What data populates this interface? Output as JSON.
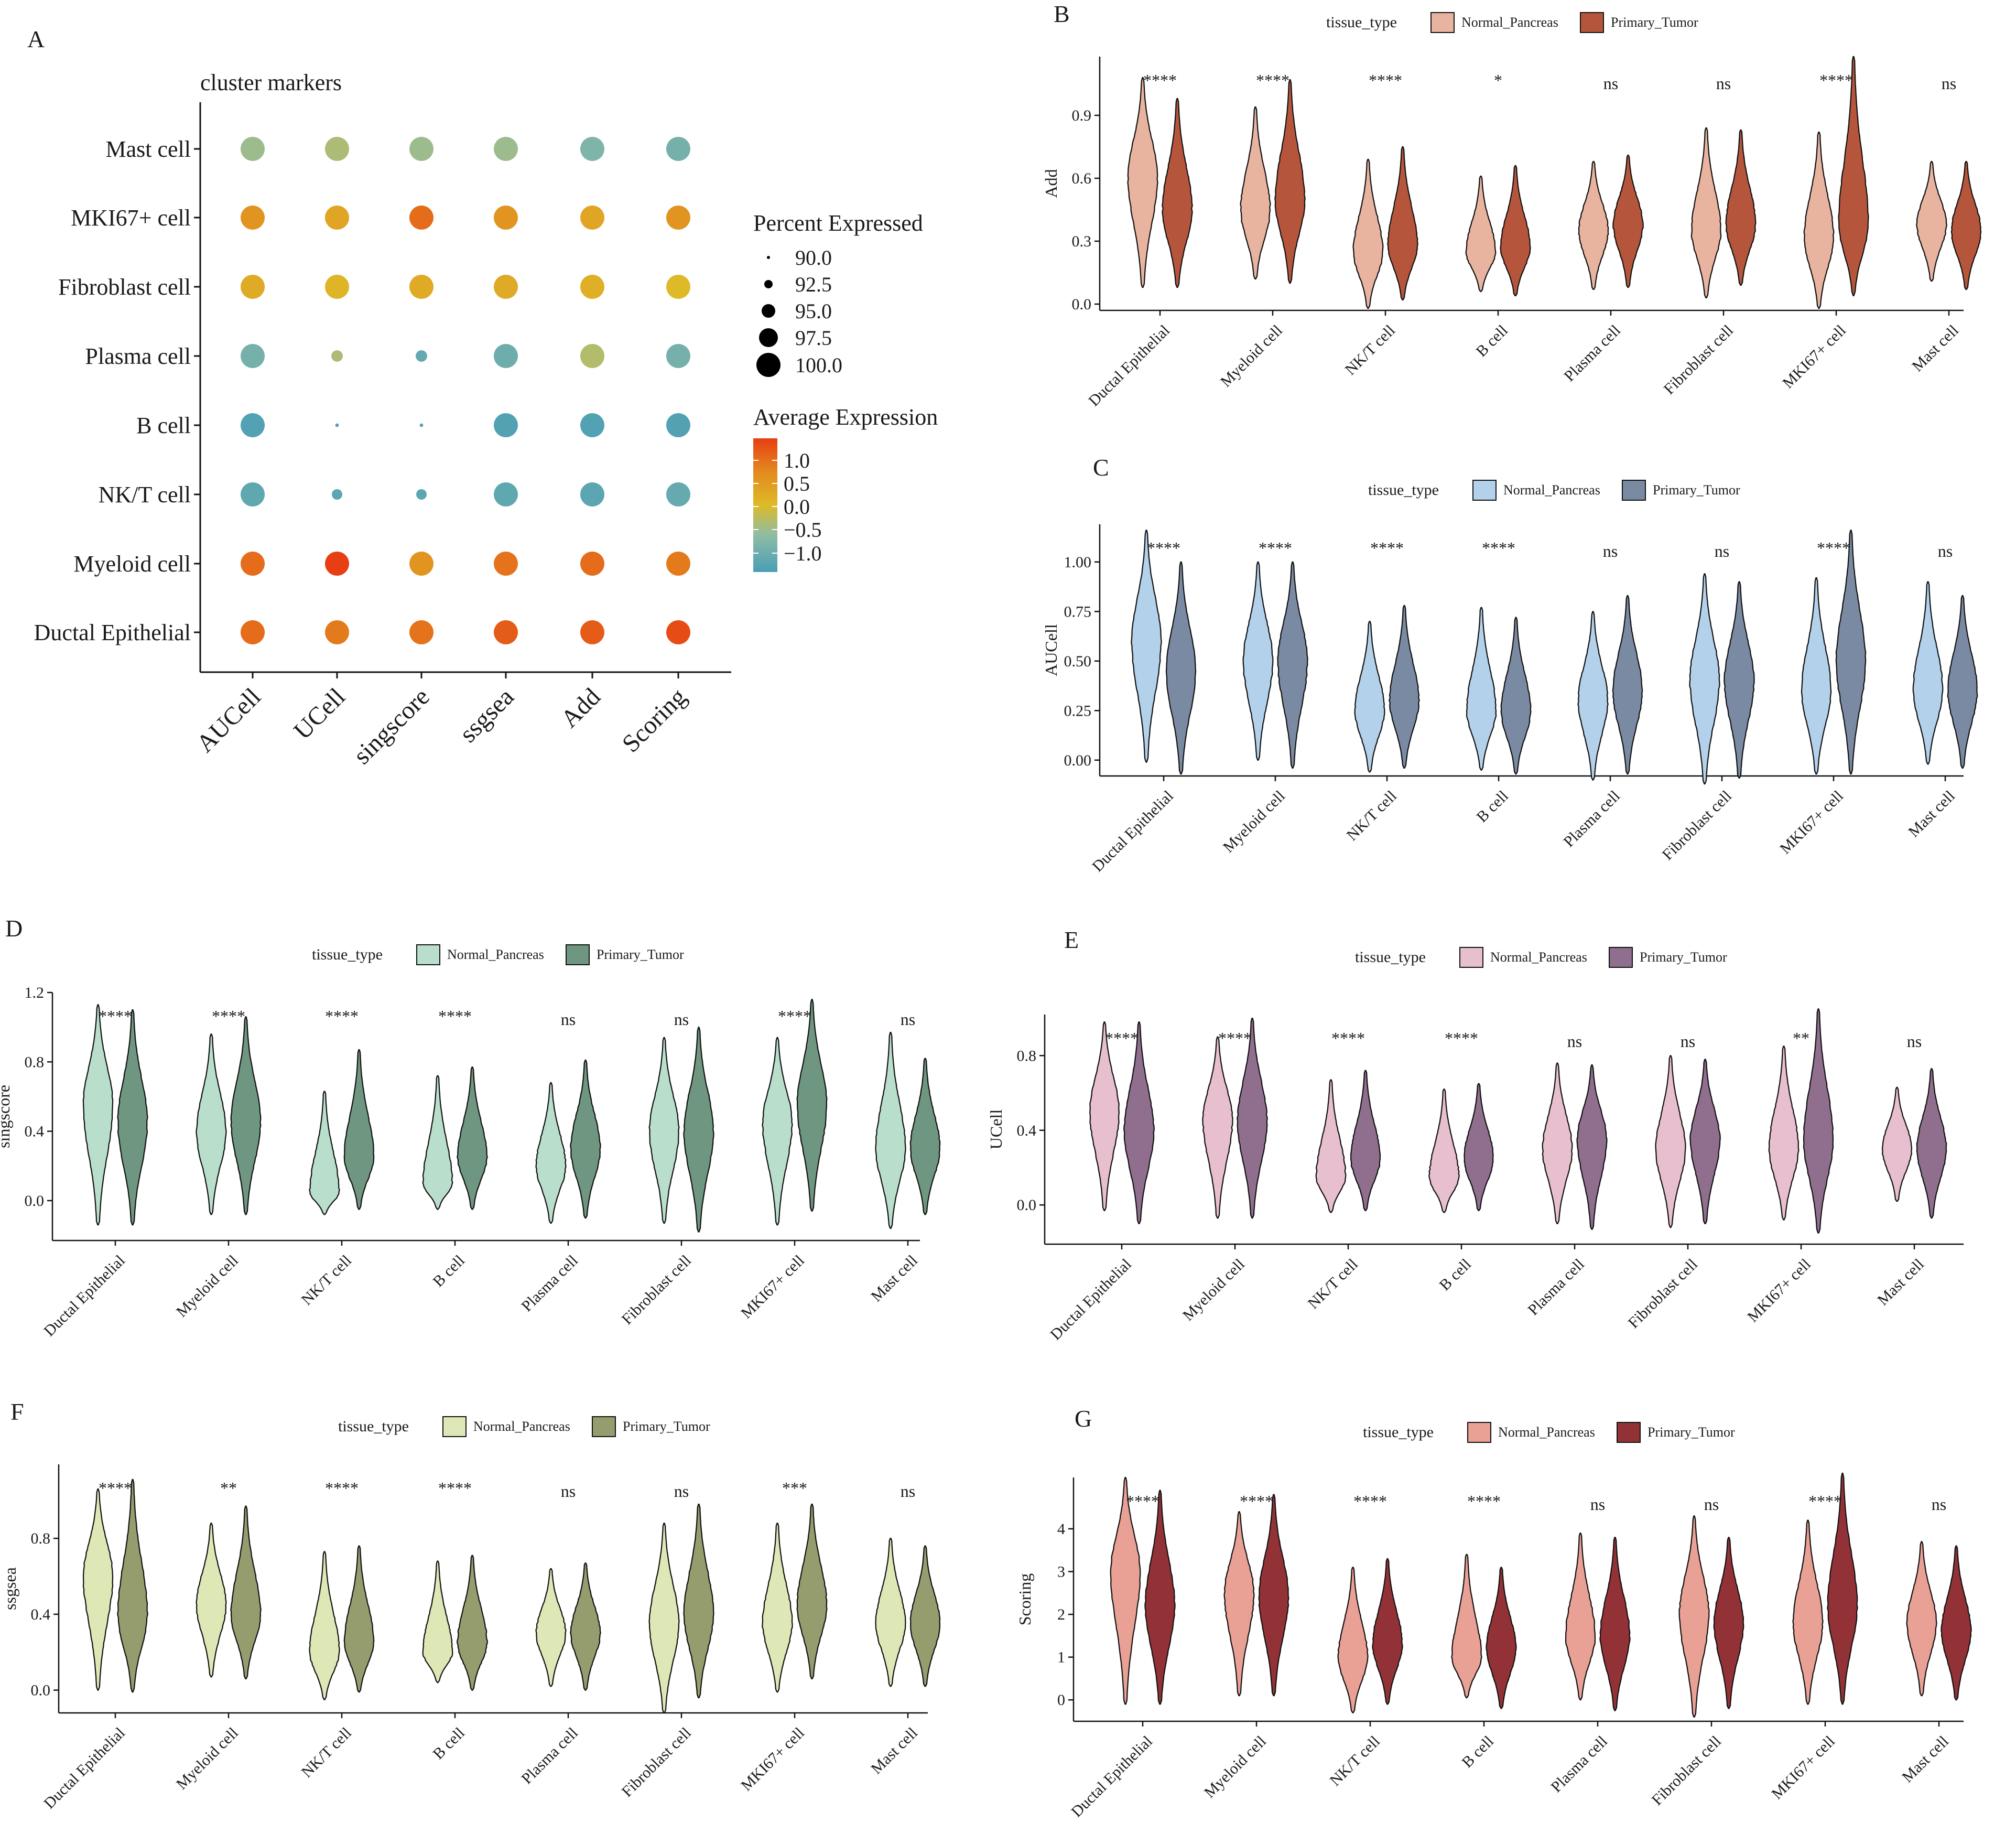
{
  "chart_data": [
    {
      "panel": "A",
      "type": "dotplot",
      "title": "cluster markers",
      "x_categories": [
        "AUCell",
        "UCell",
        "singscore",
        "ssgsea",
        "Add",
        "Scoring"
      ],
      "y_categories": [
        "Ductal Epithelial",
        "Myeloid cell",
        "NK/T cell",
        "B cell",
        "Plasma cell",
        "Fibroblast cell",
        "MKI67+ cell",
        "Mast cell"
      ],
      "size_legend_title": "Percent Expressed",
      "size_legend_values": [
        "90.0",
        "92.5",
        "95.0",
        "97.5",
        "100.0"
      ],
      "color_legend_title": "Average Expression",
      "color_legend_values": [
        "1.0",
        "0.5",
        "0.0",
        "−0.5",
        "−1.0"
      ],
      "avg_expression": [
        [
          0.9,
          0.8,
          0.85,
          1.0,
          1.0,
          1.1
        ],
        [
          0.9,
          1.2,
          0.6,
          0.85,
          0.9,
          0.8
        ],
        [
          -0.85,
          -0.9,
          -0.9,
          -0.85,
          -0.9,
          -0.8
        ],
        [
          -1.0,
          -1.0,
          -1.0,
          -1.0,
          -1.0,
          -1.0
        ],
        [
          -0.6,
          -0.1,
          -0.8,
          -0.7,
          -0.05,
          -0.6
        ],
        [
          0.4,
          0.3,
          0.4,
          0.4,
          0.35,
          0.25
        ],
        [
          0.6,
          0.45,
          0.9,
          0.6,
          0.45,
          0.6
        ],
        [
          -0.2,
          -0.1,
          -0.2,
          -0.2,
          -0.5,
          -0.6
        ]
      ],
      "pct_expressed": [
        [
          100,
          100,
          100,
          100,
          100,
          100
        ],
        [
          100,
          100,
          100,
          100,
          100,
          100
        ],
        [
          100,
          93.5,
          93.5,
          100,
          100,
          100
        ],
        [
          100,
          90.2,
          90.2,
          100,
          100,
          100
        ],
        [
          100,
          94,
          94,
          100,
          100,
          100
        ],
        [
          100,
          100,
          100,
          100,
          100,
          100
        ],
        [
          100,
          100,
          100,
          100,
          100,
          100
        ],
        [
          100,
          100,
          100,
          100,
          100,
          100
        ]
      ]
    },
    {
      "panel": "B",
      "type": "violin",
      "ylabel": "Add",
      "legend_title": "tissue_type",
      "legend": [
        "Normal_Pancreas",
        "Primary_Tumor"
      ],
      "colors": [
        "#E8B4A0",
        "#B5563C"
      ],
      "categories": [
        "Ductal Epithelial",
        "Myeloid cell",
        "NK/T cell",
        "B cell",
        "Plasma cell",
        "Fibroblast cell",
        "MKI67+ cell",
        "Mast cell"
      ],
      "ylim": [
        -0.03,
        1.18
      ],
      "yticks": [
        0.0,
        0.3,
        0.6,
        0.9
      ],
      "ytick_labels": [
        "0.0",
        "0.3",
        "0.6",
        "0.9"
      ],
      "significance": [
        "****",
        "****",
        "****",
        "*",
        "ns",
        "ns",
        "****",
        "ns"
      ],
      "series": [
        {
          "name": "Normal_Pancreas",
          "min": [
            0.08,
            0.12,
            -0.02,
            0.06,
            0.07,
            0.03,
            -0.02,
            0.11
          ],
          "max": [
            1.08,
            0.94,
            0.69,
            0.61,
            0.68,
            0.84,
            0.82,
            0.68
          ],
          "mode": [
            0.6,
            0.45,
            0.25,
            0.25,
            0.35,
            0.35,
            0.32,
            0.38
          ]
        },
        {
          "name": "Primary_Tumor",
          "min": [
            0.08,
            0.1,
            0.02,
            0.04,
            0.08,
            0.09,
            0.04,
            0.07
          ],
          "max": [
            0.98,
            1.07,
            0.75,
            0.66,
            0.71,
            0.83,
            1.18,
            0.68
          ],
          "mode": [
            0.45,
            0.5,
            0.28,
            0.27,
            0.38,
            0.38,
            0.38,
            0.35
          ]
        }
      ]
    },
    {
      "panel": "C",
      "type": "violin",
      "ylabel": "AUCell",
      "legend_title": "tissue_type",
      "legend": [
        "Normal_Pancreas",
        "Primary_Tumor"
      ],
      "colors": [
        "#B3D1EA",
        "#7A8AA3"
      ],
      "categories": [
        "Ductal Epithelial",
        "Myeloid cell",
        "NK/T cell",
        "B cell",
        "Plasma cell",
        "Fibroblast cell",
        "MKI67+ cell",
        "Mast cell"
      ],
      "ylim": [
        -0.08,
        1.19
      ],
      "yticks": [
        0.0,
        0.25,
        0.5,
        0.75,
        1.0
      ],
      "ytick_labels": [
        "0.00",
        "0.25",
        "0.50",
        "0.75",
        "1.00"
      ],
      "significance": [
        "****",
        "****",
        "****",
        "****",
        "ns",
        "ns",
        "****",
        "ns"
      ],
      "series": [
        {
          "name": "Normal_Pancreas",
          "min": [
            -0.01,
            0.0,
            -0.06,
            -0.05,
            -0.1,
            -0.12,
            -0.07,
            -0.02
          ],
          "max": [
            1.16,
            1.0,
            0.7,
            0.77,
            0.75,
            0.94,
            0.92,
            0.9
          ],
          "mode": [
            0.6,
            0.5,
            0.25,
            0.25,
            0.3,
            0.4,
            0.35,
            0.35
          ]
        },
        {
          "name": "Primary_Tumor",
          "min": [
            -0.07,
            -0.04,
            -0.04,
            -0.07,
            -0.07,
            -0.09,
            -0.07,
            -0.04
          ],
          "max": [
            1.0,
            1.0,
            0.78,
            0.72,
            0.83,
            0.9,
            1.16,
            0.83
          ],
          "mode": [
            0.45,
            0.5,
            0.3,
            0.25,
            0.35,
            0.4,
            0.5,
            0.35
          ]
        }
      ]
    },
    {
      "panel": "D",
      "type": "violin",
      "ylabel": "singscore",
      "legend_title": "tissue_type",
      "legend": [
        "Normal_Pancreas",
        "Primary_Tumor"
      ],
      "colors": [
        "#B9DFCC",
        "#6E9680"
      ],
      "categories": [
        "Ductal Epithelial",
        "Myeloid cell",
        "NK/T cell",
        "B cell",
        "Plasma cell",
        "Fibroblast cell",
        "MKI67+ cell",
        "Mast cell"
      ],
      "ylim": [
        -0.23,
        1.2
      ],
      "yticks": [
        0.0,
        0.4,
        0.8,
        1.2
      ],
      "ytick_labels": [
        "0.0",
        "0.4",
        "0.8",
        "1.2"
      ],
      "significance": [
        "****",
        "****",
        "****",
        "****",
        "ns",
        "ns",
        "****",
        "ns"
      ],
      "series": [
        {
          "name": "Normal_Pancreas",
          "min": [
            -0.14,
            -0.08,
            -0.08,
            -0.05,
            -0.13,
            -0.13,
            -0.14,
            -0.16
          ],
          "max": [
            1.13,
            0.96,
            0.63,
            0.72,
            0.68,
            0.94,
            0.94,
            0.97
          ],
          "mode": [
            0.55,
            0.4,
            0.05,
            0.1,
            0.2,
            0.4,
            0.45,
            0.3
          ]
        },
        {
          "name": "Primary_Tumor",
          "min": [
            -0.14,
            -0.08,
            -0.05,
            -0.05,
            -0.1,
            -0.18,
            -0.06,
            -0.08
          ],
          "max": [
            1.1,
            1.06,
            0.87,
            0.77,
            0.81,
            1.0,
            1.16,
            0.82
          ],
          "mode": [
            0.45,
            0.45,
            0.25,
            0.25,
            0.3,
            0.4,
            0.55,
            0.3
          ]
        }
      ]
    },
    {
      "panel": "E",
      "type": "violin",
      "ylabel": "UCell",
      "legend_title": "tissue_type",
      "legend": [
        "Normal_Pancreas",
        "Primary_Tumor"
      ],
      "colors": [
        "#E7BFCE",
        "#8F6E8E"
      ],
      "categories": [
        "Ductal Epithelial",
        "Myeloid cell",
        "NK/T cell",
        "B cell",
        "Plasma cell",
        "Fibroblast cell",
        "MKI67+ cell",
        "Mast cell"
      ],
      "ylim": [
        -0.21,
        1.02
      ],
      "yticks": [
        0.0,
        0.4,
        0.8
      ],
      "ytick_labels": [
        "0.0",
        "0.4",
        "0.8"
      ],
      "significance": [
        "****",
        "****",
        "****",
        "****",
        "ns",
        "ns",
        "**",
        "ns"
      ],
      "series": [
        {
          "name": "Normal_Pancreas",
          "min": [
            -0.03,
            -0.07,
            -0.04,
            -0.04,
            -0.1,
            -0.12,
            -0.08,
            0.02
          ],
          "max": [
            0.98,
            0.9,
            0.67,
            0.62,
            0.76,
            0.8,
            0.85,
            0.63
          ],
          "mode": [
            0.5,
            0.45,
            0.15,
            0.15,
            0.3,
            0.3,
            0.3,
            0.3
          ]
        },
        {
          "name": "Primary_Tumor",
          "min": [
            -0.1,
            -0.07,
            -0.03,
            -0.03,
            -0.13,
            -0.1,
            -0.15,
            -0.07
          ],
          "max": [
            0.98,
            1.0,
            0.72,
            0.65,
            0.75,
            0.78,
            1.05,
            0.73
          ],
          "mode": [
            0.4,
            0.45,
            0.25,
            0.25,
            0.35,
            0.35,
            0.35,
            0.3
          ]
        }
      ]
    },
    {
      "panel": "F",
      "type": "violin",
      "ylabel": "ssgsea",
      "legend_title": "tissue_type",
      "legend": [
        "Normal_Pancreas",
        "Primary_Tumor"
      ],
      "colors": [
        "#DDE8B6",
        "#959C6E"
      ],
      "categories": [
        "Ductal Epithelial",
        "Myeloid cell",
        "NK/T cell",
        "B cell",
        "Plasma cell",
        "Fibroblast cell",
        "MKI67+ cell",
        "Mast cell"
      ],
      "ylim": [
        -0.12,
        1.19
      ],
      "yticks": [
        0.0,
        0.4,
        0.8
      ],
      "ytick_labels": [
        "0.0",
        "0.4",
        "0.8"
      ],
      "significance": [
        "****",
        "**",
        "****",
        "****",
        "ns",
        "ns",
        "***",
        "ns"
      ],
      "series": [
        {
          "name": "Normal_Pancreas",
          "min": [
            0.0,
            0.07,
            -0.05,
            0.04,
            0.02,
            -0.12,
            -0.01,
            0.02
          ],
          "max": [
            1.06,
            0.88,
            0.73,
            0.68,
            0.64,
            0.88,
            0.88,
            0.8
          ],
          "mode": [
            0.6,
            0.45,
            0.2,
            0.2,
            0.3,
            0.35,
            0.35,
            0.35
          ]
        },
        {
          "name": "Primary_Tumor",
          "min": [
            -0.01,
            0.06,
            -0.01,
            0.0,
            0.0,
            -0.04,
            0.06,
            0.02
          ],
          "max": [
            1.11,
            0.97,
            0.76,
            0.71,
            0.67,
            0.98,
            0.98,
            0.76
          ],
          "mode": [
            0.4,
            0.4,
            0.25,
            0.25,
            0.3,
            0.4,
            0.45,
            0.35
          ]
        }
      ]
    },
    {
      "panel": "G",
      "type": "violin",
      "ylabel": "Scoring",
      "legend_title": "tissue_type",
      "legend": [
        "Normal_Pancreas",
        "Primary_Tumor"
      ],
      "colors": [
        "#E9A095",
        "#923237"
      ],
      "categories": [
        "Ductal Epithelial",
        "Myeloid cell",
        "NK/T cell",
        "B cell",
        "Plasma cell",
        "Fibroblast cell",
        "MKI67+ cell",
        "Mast cell"
      ],
      "ylim": [
        -0.5,
        5.2
      ],
      "yticks": [
        0,
        1,
        2,
        3,
        4
      ],
      "ytick_labels": [
        "0",
        "1",
        "2",
        "3",
        "4"
      ],
      "significance": [
        "****",
        "****",
        "****",
        "****",
        "ns",
        "ns",
        "****",
        "ns"
      ],
      "series": [
        {
          "name": "Normal_Pancreas",
          "min": [
            -0.1,
            0.1,
            -0.3,
            0.05,
            0.0,
            -0.4,
            -0.1,
            0.1
          ],
          "max": [
            5.2,
            4.4,
            3.1,
            3.4,
            3.9,
            4.3,
            4.2,
            3.7
          ],
          "mode": [
            3.0,
            2.5,
            1.0,
            1.0,
            1.5,
            2.0,
            1.8,
            1.8
          ]
        },
        {
          "name": "Primary_Tumor",
          "min": [
            -0.1,
            0.1,
            -0.1,
            -0.2,
            -0.25,
            -0.2,
            -0.1,
            0.0
          ],
          "max": [
            4.9,
            4.8,
            3.3,
            3.1,
            3.8,
            3.8,
            5.3,
            3.6
          ],
          "mode": [
            2.2,
            2.4,
            1.3,
            1.2,
            1.5,
            1.8,
            2.2,
            1.6
          ]
        }
      ]
    }
  ]
}
